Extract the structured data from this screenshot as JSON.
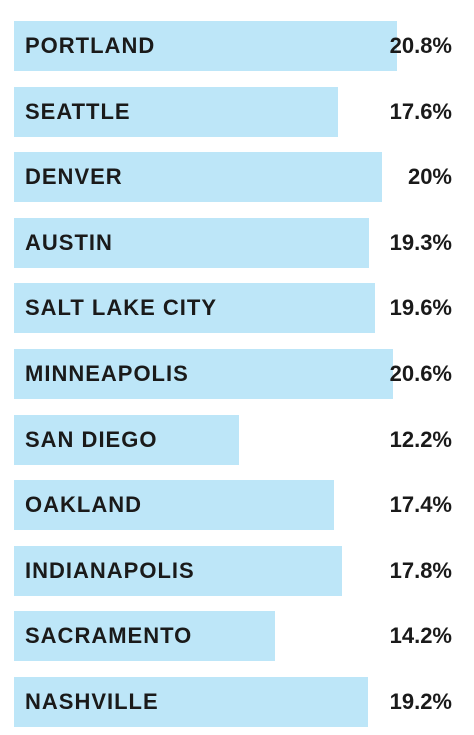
{
  "chart_data": {
    "type": "bar",
    "orientation": "horizontal",
    "categories": [
      "PORTLAND",
      "SEATTLE",
      "DENVER",
      "AUSTIN",
      "SALT LAKE CITY",
      "MINNEAPOLIS",
      "SAN DIEGO",
      "OAKLAND",
      "INDIANAPOLIS",
      "SACRAMENTO",
      "NASHVILLE"
    ],
    "values": [
      20.8,
      17.6,
      20,
      19.3,
      19.6,
      20.6,
      12.2,
      17.4,
      17.8,
      14.2,
      19.2
    ],
    "value_labels": [
      "20.8%",
      "17.6%",
      "20%",
      "19.3%",
      "19.6%",
      "20.6%",
      "12.2%",
      "17.4%",
      "17.8%",
      "14.2%",
      "19.2%"
    ],
    "title": "",
    "xlabel": "",
    "ylabel": "",
    "xlim": [
      0,
      20.8
    ],
    "grid": false,
    "legend": "none",
    "colors": {
      "bar": "#bde6f8",
      "text": "#1a1a1a",
      "background": "#ffffff"
    }
  }
}
